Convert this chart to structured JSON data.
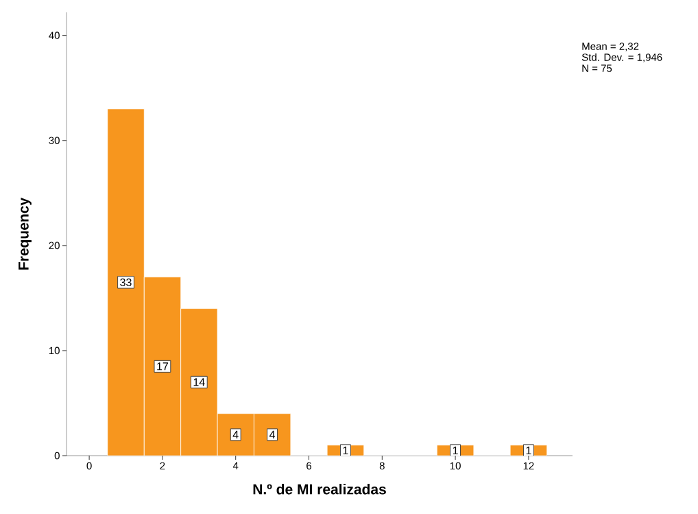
{
  "chart_data": {
    "type": "histogram",
    "xlabel": "N.º de MI realizadas",
    "ylabel": "Frequency",
    "bins": [
      0.5,
      1.5,
      2.5,
      3.5,
      4.5,
      5.5,
      6.5,
      7.5,
      8.5,
      9.5,
      10.5,
      11.5,
      12.5
    ],
    "values": [
      33,
      17,
      14,
      4,
      4,
      0,
      1,
      0,
      0,
      1,
      0,
      1
    ],
    "value_labels": [
      "33",
      "17",
      "14",
      "4",
      "4",
      null,
      "1",
      null,
      null,
      "1",
      null,
      "1"
    ],
    "color": "#f7961e",
    "xlim": [
      -0.62,
      13.2
    ],
    "ylim": [
      0,
      42.2
    ],
    "xticks": [
      0,
      2,
      4,
      6,
      8,
      10,
      12
    ],
    "yticks": [
      0,
      10,
      20,
      30,
      40
    ],
    "annotations": [
      "Mean = 2,32",
      "Std. Dev. = 1,946",
      "N = 75"
    ]
  }
}
